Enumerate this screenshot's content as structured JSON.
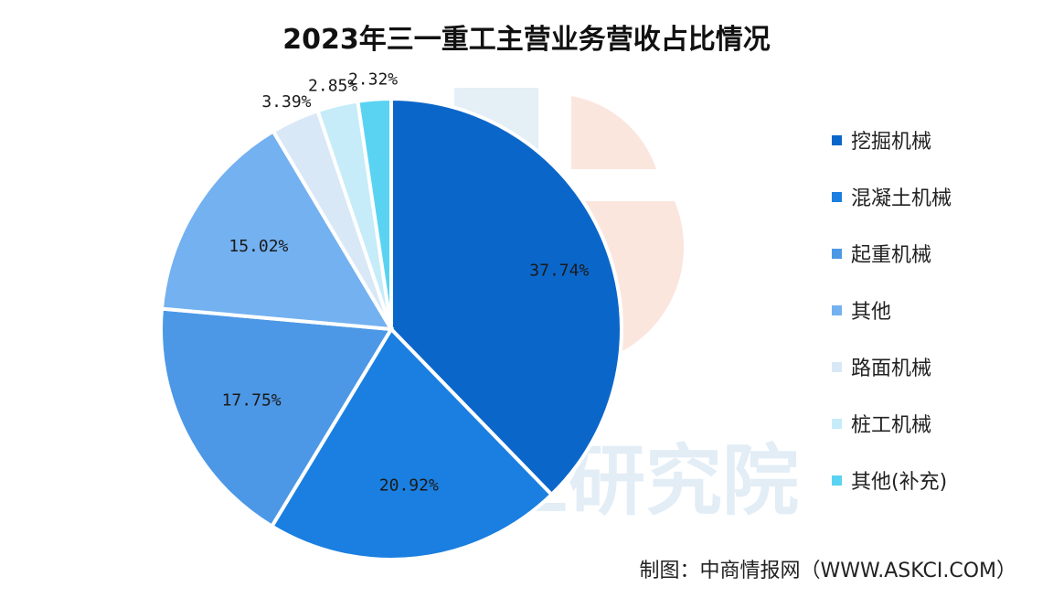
{
  "title": "2023年三一重工主营业务营收占比情况",
  "source": "制图：中商情报网（WWW.ASKCI.COM）",
  "watermark_text": "中商产业研究院",
  "chart_data": {
    "type": "pie",
    "title": "2023年三一重工主营业务营收占比情况",
    "start_angle_deg": 0,
    "direction": "clockwise",
    "legend_position": "right",
    "slices": [
      {
        "label": "挖掘机械",
        "value": 37.74,
        "display": "37.74%",
        "color": "#0b66c9"
      },
      {
        "label": "混凝土机械",
        "value": 20.92,
        "display": "20.92%",
        "color": "#1a7fe0"
      },
      {
        "label": "起重机械",
        "value": 17.75,
        "display": "17.75%",
        "color": "#4c98e6"
      },
      {
        "label": "其他",
        "value": 15.02,
        "display": "15.02%",
        "color": "#73b1f0"
      },
      {
        "label": "路面机械",
        "value": 3.39,
        "display": "3.39%",
        "color": "#d8e8f7"
      },
      {
        "label": "桩工机械",
        "value": 2.85,
        "display": "2.85%",
        "color": "#c5ecf8"
      },
      {
        "label": "其他(补充)",
        "value": 2.32,
        "display": "2.32%",
        "color": "#5ad3f2"
      }
    ]
  }
}
